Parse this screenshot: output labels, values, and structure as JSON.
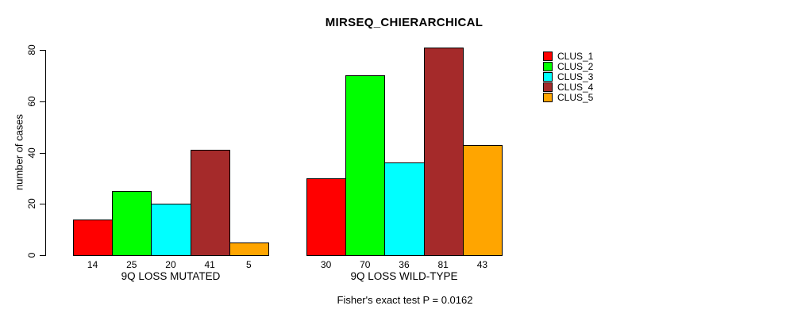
{
  "page": {
    "background_color": "#ffffff",
    "text_color": "#000000"
  },
  "chart_data": {
    "type": "bar",
    "title": "MIRSEQ_CHIERARCHICAL",
    "ylabel": "number of cases",
    "xlabel": "",
    "ylim": [
      0,
      80
    ],
    "yticks": [
      0,
      20,
      40,
      60,
      80
    ],
    "grid": false,
    "bar_border_color": "#000000",
    "legend_position": "right",
    "categories": [
      "9Q LOSS MUTATED",
      "9Q LOSS WILD-TYPE"
    ],
    "series": [
      {
        "name": "CLUS_1",
        "color": "#ff0000",
        "values": [
          14,
          30
        ]
      },
      {
        "name": "CLUS_2",
        "color": "#00ff00",
        "values": [
          25,
          70
        ]
      },
      {
        "name": "CLUS_3",
        "color": "#00ffff",
        "values": [
          20,
          36
        ]
      },
      {
        "name": "CLUS_4",
        "color": "#a52a2a",
        "values": [
          41,
          81
        ]
      },
      {
        "name": "CLUS_5",
        "color": "#ffa500",
        "values": [
          5,
          43
        ]
      }
    ],
    "bar_value_labels": {
      "9Q LOSS MUTATED": [
        14,
        25,
        20,
        41,
        5
      ],
      "9Q LOSS WILD-TYPE": [
        30,
        70,
        36,
        81,
        43
      ]
    },
    "footer": "Fisher's exact test P = 0.0162"
  }
}
